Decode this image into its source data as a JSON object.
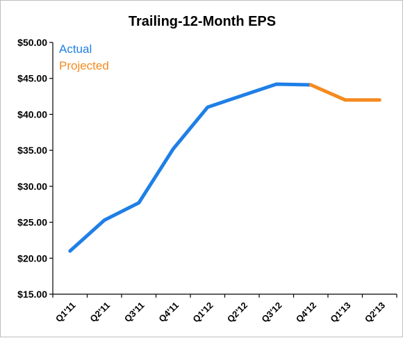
{
  "chart_data": {
    "type": "line",
    "title": "Trailing-12-Month EPS",
    "xlabel": "",
    "ylabel": "",
    "categories": [
      "Q1'11",
      "Q2'11",
      "Q3'11",
      "Q4'11",
      "Q1'12",
      "Q2'12",
      "Q3'12",
      "Q4'12",
      "Q1'13",
      "Q2'13"
    ],
    "y_ticks": [
      "$15.00",
      "$20.00",
      "$25.00",
      "$30.00",
      "$35.00",
      "$40.00",
      "$45.00",
      "$50.00"
    ],
    "ylim": [
      15,
      50
    ],
    "grid": false,
    "legend_position": "top-left",
    "series": [
      {
        "name": "Actual",
        "color": "#1f7fe6",
        "values": [
          21.0,
          25.3,
          27.7,
          35.2,
          41.0,
          42.6,
          44.2,
          44.1,
          null,
          null
        ]
      },
      {
        "name": "Projected",
        "color": "#f58a1f",
        "values": [
          null,
          null,
          null,
          null,
          null,
          null,
          null,
          44.1,
          42.0,
          42.0
        ]
      }
    ]
  }
}
